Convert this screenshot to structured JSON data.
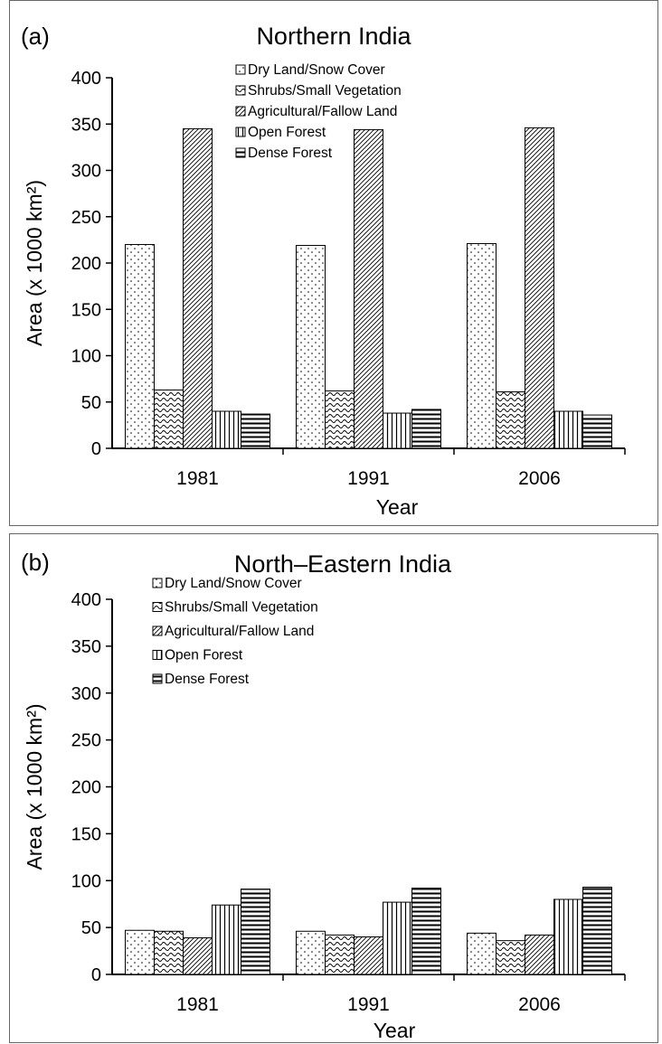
{
  "figure": {
    "colors": {
      "axis": "#000000",
      "fill": "#ffffff",
      "pattern": "#000000"
    }
  },
  "chart_data": [
    {
      "type": "bar",
      "panel_label": "(a)",
      "title": "Northern India",
      "xlabel": "Year",
      "ylabel": "Area (x 1000 km²)",
      "ylim": [
        0,
        400
      ],
      "yticks": [
        0,
        50,
        100,
        150,
        200,
        250,
        300,
        350,
        400
      ],
      "categories": [
        "1981",
        "1991",
        "2006"
      ],
      "legend_position": "top-center",
      "series": [
        {
          "name": "Dry Land/Snow Cover",
          "pattern": "dots",
          "values": [
            220,
            219,
            221
          ]
        },
        {
          "name": "Shrubs/Small Vegetation",
          "pattern": "waves",
          "values": [
            63,
            62,
            61
          ]
        },
        {
          "name": "Agricultural/Fallow Land",
          "pattern": "diagonal",
          "values": [
            345,
            344,
            346
          ]
        },
        {
          "name": "Open Forest",
          "pattern": "vertical",
          "values": [
            40,
            38,
            40
          ]
        },
        {
          "name": "Dense Forest",
          "pattern": "horizontal",
          "values": [
            37,
            42,
            36
          ]
        }
      ]
    },
    {
      "type": "bar",
      "panel_label": "(b)",
      "title": "North–Eastern India",
      "xlabel": "Year",
      "ylabel": "Area (x 1000 km²)",
      "ylim": [
        0,
        400
      ],
      "yticks": [
        0,
        50,
        100,
        150,
        200,
        250,
        300,
        350,
        400
      ],
      "categories": [
        "1981",
        "1991",
        "2006"
      ],
      "legend_position": "top-left",
      "series": [
        {
          "name": "Dry Land/Snow Cover",
          "pattern": "dots",
          "values": [
            47,
            46,
            44
          ]
        },
        {
          "name": "Shrubs/Small Vegetation",
          "pattern": "waves",
          "values": [
            46,
            42,
            36
          ]
        },
        {
          "name": "Agricultural/Fallow Land",
          "pattern": "diagonal",
          "values": [
            39,
            40,
            42
          ]
        },
        {
          "name": "Open Forest",
          "pattern": "vertical",
          "values": [
            74,
            77,
            80
          ]
        },
        {
          "name": "Dense Forest",
          "pattern": "horizontal",
          "values": [
            91,
            92,
            93
          ]
        }
      ]
    }
  ]
}
